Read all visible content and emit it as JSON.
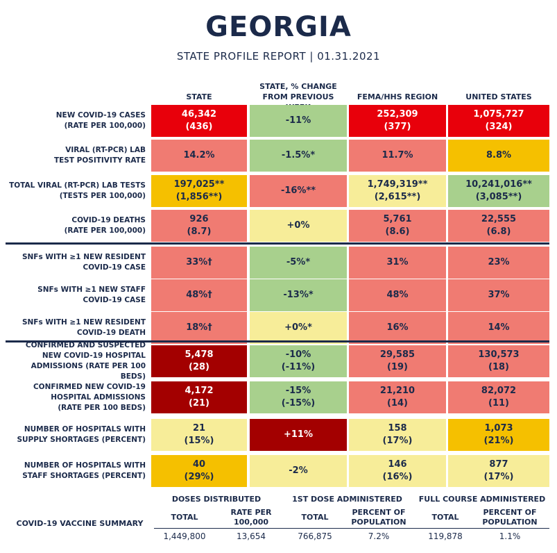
{
  "header": {
    "title": "GEORGIA",
    "subtitle": "STATE PROFILE REPORT | 01.31.2021"
  },
  "columns": {
    "state": "STATE",
    "change": [
      "STATE, % CHANGE",
      "FROM PREVIOUS WEEK"
    ],
    "region": "FEMA/HHS REGION",
    "us": "UNITED STATES"
  },
  "colors": {
    "red": "#e8000b",
    "salmon": "#f07b72",
    "green": "#a8d08d",
    "yellow": "#f7ed99",
    "orange": "#f5c000",
    "darkred": "#a30000",
    "navy": "#1b2a4a"
  },
  "rows": [
    {
      "label": [
        "NEW COVID-19 CASES",
        "(RATE PER 100,000)"
      ],
      "cells": [
        {
          "lines": [
            "46,342",
            "(436)"
          ],
          "color": "red"
        },
        {
          "lines": [
            "-11%"
          ],
          "color": "green"
        },
        {
          "lines": [
            "252,309",
            "(377)"
          ],
          "color": "red"
        },
        {
          "lines": [
            "1,075,727",
            "(324)"
          ],
          "color": "red"
        }
      ]
    },
    {
      "label": [
        "VIRAL (RT-PCR) LAB",
        "TEST POSITIVITY RATE"
      ],
      "cells": [
        {
          "lines": [
            "14.2%"
          ],
          "color": "salmon"
        },
        {
          "lines": [
            "-1.5%*"
          ],
          "color": "green"
        },
        {
          "lines": [
            "11.7%"
          ],
          "color": "salmon"
        },
        {
          "lines": [
            "8.8%"
          ],
          "color": "orange"
        }
      ]
    },
    {
      "label": [
        "TOTAL VIRAL (RT-PCR) LAB TESTS",
        "(TESTS PER 100,000)"
      ],
      "cells": [
        {
          "lines": [
            "197,025**",
            "(1,856**)"
          ],
          "color": "orange"
        },
        {
          "lines": [
            "-16%**"
          ],
          "color": "salmon"
        },
        {
          "lines": [
            "1,749,319**",
            "(2,615**)"
          ],
          "color": "yellow"
        },
        {
          "lines": [
            "10,241,016**",
            "(3,085**)"
          ],
          "color": "green"
        }
      ]
    },
    {
      "label": [
        "COVID-19 DEATHS",
        "(RATE PER 100,000)"
      ],
      "cells": [
        {
          "lines": [
            "926",
            "(8.7)"
          ],
          "color": "salmon"
        },
        {
          "lines": [
            "+0%"
          ],
          "color": "yellow"
        },
        {
          "lines": [
            "5,761",
            "(8.6)"
          ],
          "color": "salmon"
        },
        {
          "lines": [
            "22,555",
            "(6.8)"
          ],
          "color": "salmon"
        }
      ]
    },
    {
      "label": [
        "SNFs WITH ≥1 NEW RESIDENT",
        "COVID-19 CASE"
      ],
      "cells": [
        {
          "lines": [
            "33%†"
          ],
          "color": "salmon"
        },
        {
          "lines": [
            "-5%*"
          ],
          "color": "green"
        },
        {
          "lines": [
            "31%"
          ],
          "color": "salmon"
        },
        {
          "lines": [
            "23%"
          ],
          "color": "salmon"
        }
      ]
    },
    {
      "label": [
        "SNFs WITH ≥1 NEW STAFF",
        "COVID-19 CASE"
      ],
      "cells": [
        {
          "lines": [
            "48%†"
          ],
          "color": "salmon"
        },
        {
          "lines": [
            "-13%*"
          ],
          "color": "green"
        },
        {
          "lines": [
            "48%"
          ],
          "color": "salmon"
        },
        {
          "lines": [
            "37%"
          ],
          "color": "salmon"
        }
      ]
    },
    {
      "label": [
        "SNFs WITH ≥1 NEW RESIDENT",
        "COVID-19 DEATH"
      ],
      "cells": [
        {
          "lines": [
            "18%†"
          ],
          "color": "salmon"
        },
        {
          "lines": [
            "+0%*"
          ],
          "color": "yellow"
        },
        {
          "lines": [
            "16%"
          ],
          "color": "salmon"
        },
        {
          "lines": [
            "14%"
          ],
          "color": "salmon"
        }
      ]
    },
    {
      "label": [
        "CONFIRMED AND SUSPECTED",
        "NEW COVID-19 HOSPITAL",
        "ADMISSIONS (RATE PER 100 BEDS)"
      ],
      "cells": [
        {
          "lines": [
            "5,478",
            "(28)"
          ],
          "color": "darkred"
        },
        {
          "lines": [
            "-10%",
            "(-11%)"
          ],
          "color": "green"
        },
        {
          "lines": [
            "29,585",
            "(19)"
          ],
          "color": "salmon"
        },
        {
          "lines": [
            "130,573",
            "(18)"
          ],
          "color": "salmon"
        }
      ]
    },
    {
      "label": [
        "CONFIRMED NEW COVID-19",
        "HOSPITAL ADMISSIONS",
        "(RATE PER 100 BEDS)"
      ],
      "cells": [
        {
          "lines": [
            "4,172",
            "(21)"
          ],
          "color": "darkred"
        },
        {
          "lines": [
            "-15%",
            "(-15%)"
          ],
          "color": "green"
        },
        {
          "lines": [
            "21,210",
            "(14)"
          ],
          "color": "salmon"
        },
        {
          "lines": [
            "82,072",
            "(11)"
          ],
          "color": "salmon"
        }
      ]
    },
    {
      "label": [
        "NUMBER OF HOSPITALS WITH",
        "SUPPLY SHORTAGES (PERCENT)"
      ],
      "cells": [
        {
          "lines": [
            "21",
            "(15%)"
          ],
          "color": "yellow"
        },
        {
          "lines": [
            "+11%"
          ],
          "color": "darkred"
        },
        {
          "lines": [
            "158",
            "(17%)"
          ],
          "color": "yellow"
        },
        {
          "lines": [
            "1,073",
            "(21%)"
          ],
          "color": "orange"
        }
      ]
    },
    {
      "label": [
        "NUMBER OF HOSPITALS WITH",
        "STAFF SHORTAGES (PERCENT)"
      ],
      "cells": [
        {
          "lines": [
            "40",
            "(29%)"
          ],
          "color": "orange"
        },
        {
          "lines": [
            "-2%"
          ],
          "color": "yellow"
        },
        {
          "lines": [
            "146",
            "(16%)"
          ],
          "color": "yellow"
        },
        {
          "lines": [
            "877",
            "(17%)"
          ],
          "color": "yellow"
        }
      ]
    }
  ],
  "vaccine": {
    "summary_label": "COVID-19 VACCINE SUMMARY",
    "groups": [
      "DOSES DISTRIBUTED",
      "1ST DOSE ADMINISTERED",
      "FULL COURSE ADMINISTERED"
    ],
    "subheaders": [
      [
        "TOTAL"
      ],
      [
        "RATE PER",
        "100,000"
      ],
      [
        "TOTAL"
      ],
      [
        "PERCENT OF",
        "POPULATION"
      ],
      [
        "TOTAL"
      ],
      [
        "PERCENT OF",
        "POPULATION"
      ]
    ],
    "values": [
      "1,449,800",
      "13,654",
      "766,875",
      "7.2%",
      "119,878",
      "1.1%"
    ]
  }
}
